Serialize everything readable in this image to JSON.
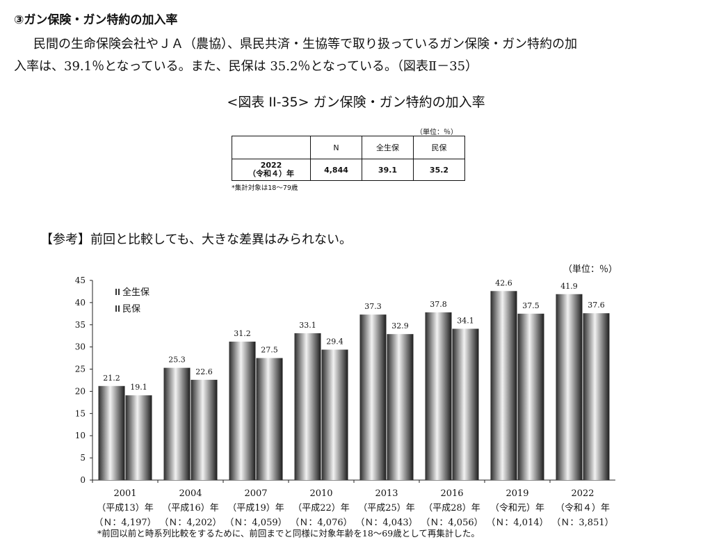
{
  "heading": "③ガン保険・ガン特約の加入率",
  "paragraph": {
    "line1": "民間の生命保険会社やＪＡ（農協）、県民共済・生協等で取り扱っているガン保険・ガン特約の加",
    "line2": "入率は、39.1％となっている。また、民保は 35.2％となっている。（図表Ⅱ－35）"
  },
  "figure_title": "<図表 II-35> ガン保険・ガン特約の加入率",
  "table": {
    "unit": "（単位：％）",
    "headers": [
      "",
      "N",
      "全生保",
      "民保"
    ],
    "row": {
      "label_year": "2022",
      "label_era": "（令和４）年",
      "n": "4,844",
      "all_life": "39.1",
      "private": "35.2"
    },
    "note": "*集計対象は18～79歳"
  },
  "reference_text": "【参考】前回と比較しても、大きな差異はみられない。",
  "chart_data": {
    "type": "bar",
    "unit_label": "（単位：％）",
    "categories": [
      "2001",
      "2004",
      "2007",
      "2010",
      "2013",
      "2016",
      "2019",
      "2022"
    ],
    "category_eras": [
      "（平成13）年",
      "（平成16）年",
      "（平成19）年",
      "（平成22）年",
      "（平成25）年",
      "（平成28）年",
      "（令和元）年",
      "（令和４）年"
    ],
    "category_n": [
      "（Ｎ：4,197）",
      "（Ｎ：4,202）",
      "（Ｎ：4,059）",
      "（Ｎ：4,076）",
      "（Ｎ：4,043）",
      "（Ｎ：4,056）",
      "（Ｎ：4,014）",
      "（Ｎ：3,851）"
    ],
    "series": [
      {
        "name": "全生保",
        "values": [
          21.2,
          25.3,
          31.2,
          33.1,
          37.3,
          37.8,
          42.6,
          41.9
        ]
      },
      {
        "name": "民保",
        "values": [
          19.1,
          22.6,
          27.5,
          29.4,
          32.9,
          34.1,
          37.5,
          37.6
        ]
      }
    ],
    "ylim": [
      0,
      45
    ],
    "yticks": [
      0,
      5,
      10,
      15,
      20,
      25,
      30,
      35,
      40,
      45
    ],
    "legend_position": "top-left",
    "grid": false,
    "footnote": "*前回以前と時系列比較をするために、前回までと同様に対象年齢を18～69歳として再集計した。"
  }
}
